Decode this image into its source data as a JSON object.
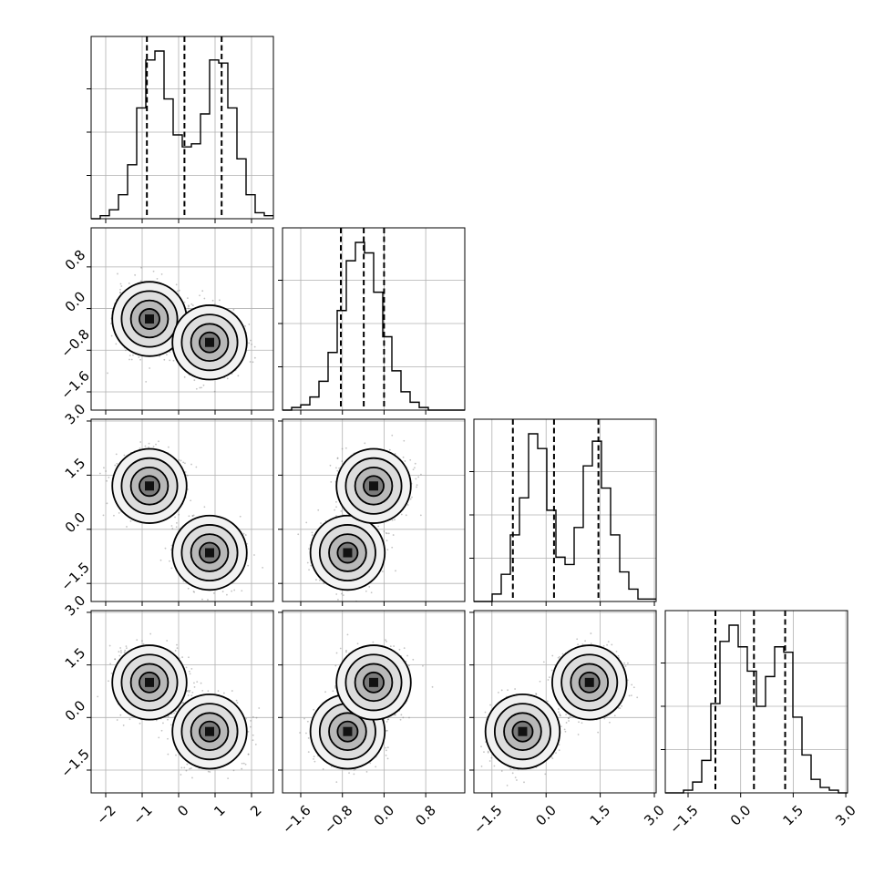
{
  "chart_data": {
    "type": "corner",
    "parameters": 4,
    "axis_ranges": [
      [
        -2.4,
        2.6
      ],
      [
        -1.95,
        1.55
      ],
      [
        -2.0,
        3.05
      ],
      [
        -2.15,
        3.05
      ]
    ],
    "ticks": {
      "p0": {
        "values": [
          -2,
          -1,
          0,
          1,
          2
        ],
        "labels": [
          "−2",
          "−1",
          "0",
          "1",
          "2"
        ]
      },
      "p1": {
        "values": [
          -1.6,
          -0.8,
          0.0,
          0.8
        ],
        "labels": [
          "−1.6",
          "−0.8",
          "0.0",
          "0.8"
        ]
      },
      "p2": {
        "values": [
          -1.5,
          0.0,
          1.5,
          3.0
        ],
        "labels": [
          "−1.5",
          "0.0",
          "1.5",
          "3.0"
        ]
      },
      "p3": {
        "values": [
          -1.5,
          0.0,
          1.5,
          3.0
        ],
        "labels": [
          "−1.5",
          "0.0",
          "1.5",
          "3.0"
        ]
      }
    },
    "quantiles": {
      "p0": [
        -0.87,
        0.16,
        1.18
      ],
      "p1": [
        -0.83,
        -0.39,
        0.0
      ],
      "p2": [
        -0.92,
        0.22,
        1.45
      ],
      "p3": [
        -0.72,
        0.38,
        1.27
      ]
    },
    "histograms": {
      "p0": {
        "range": [
          -2.4,
          2.6
        ],
        "counts": [
          0,
          1,
          3,
          8,
          18,
          37,
          53,
          56,
          40,
          28,
          24,
          25,
          35,
          53,
          52,
          37,
          20,
          8,
          2,
          1
        ]
      },
      "p1": {
        "range": [
          -1.95,
          1.55
        ],
        "counts": [
          0,
          1,
          2,
          5,
          11,
          22,
          38,
          57,
          64,
          60,
          45,
          28,
          15,
          7,
          3,
          1,
          0,
          0,
          0,
          0
        ]
      },
      "p2": {
        "range": [
          -2.0,
          3.05
        ],
        "counts": [
          0,
          0,
          3,
          11,
          27,
          42,
          68,
          62,
          37,
          18,
          15,
          30,
          55,
          65,
          46,
          27,
          12,
          5,
          1,
          1
        ]
      },
      "p3": {
        "range": [
          -2.15,
          3.05
        ],
        "counts": [
          0,
          0,
          1,
          4,
          12,
          33,
          56,
          62,
          54,
          45,
          32,
          43,
          54,
          52,
          28,
          14,
          5,
          2,
          1,
          0
        ]
      }
    },
    "joint": [
      {
        "x": "p0",
        "y": "p1",
        "modes": [
          [
            -0.8,
            -0.2
          ],
          [
            0.85,
            -0.65
          ]
        ]
      },
      {
        "x": "p0",
        "y": "p2",
        "modes": [
          [
            -0.8,
            1.2
          ],
          [
            0.85,
            -0.65
          ]
        ]
      },
      {
        "x": "p1",
        "y": "p2",
        "modes": [
          [
            -0.7,
            -0.65
          ],
          [
            -0.2,
            1.2
          ]
        ]
      },
      {
        "x": "p0",
        "y": "p3",
        "modes": [
          [
            -0.8,
            1.0
          ],
          [
            0.85,
            -0.4
          ]
        ]
      },
      {
        "x": "p1",
        "y": "p3",
        "modes": [
          [
            -0.7,
            -0.4
          ],
          [
            -0.2,
            1.0
          ]
        ]
      },
      {
        "x": "p2",
        "y": "p3",
        "modes": [
          [
            -0.65,
            -0.4
          ],
          [
            1.2,
            1.0
          ]
        ]
      }
    ],
    "title": "",
    "xlabel": "",
    "ylabel": "",
    "grid": true,
    "colors": {
      "line": "#000000",
      "scatter": "#7a7a7a",
      "grid": "#b0b0b0",
      "background": "#ffffff"
    }
  }
}
